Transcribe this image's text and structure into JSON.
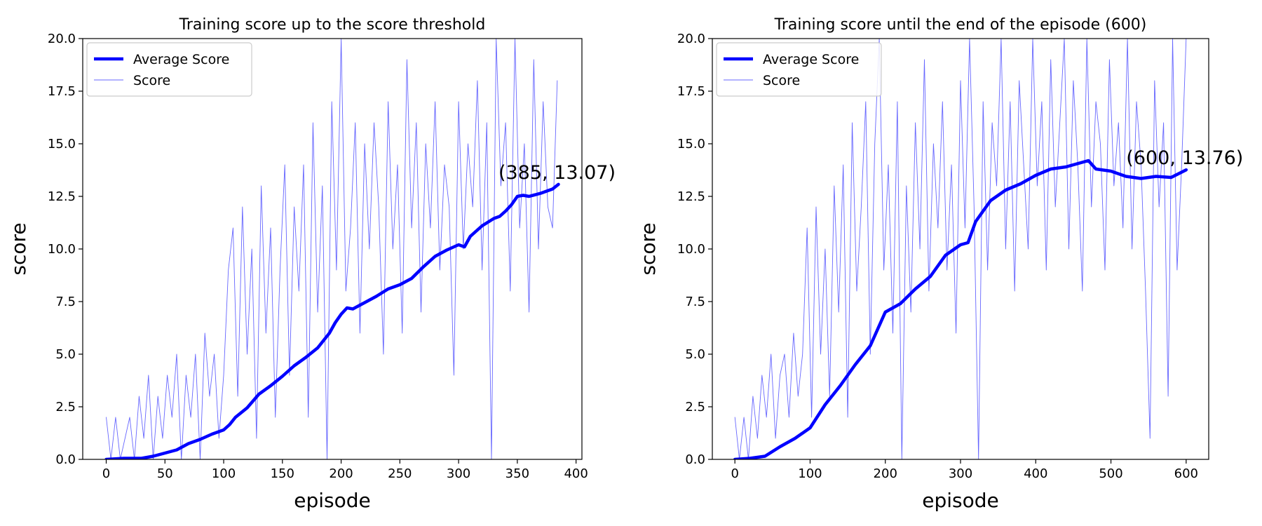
{
  "colors": {
    "line": "#0000ff",
    "axis": "#000000",
    "background": "#ffffff",
    "legend_border": "#cccccc"
  },
  "chart_data": [
    {
      "type": "line",
      "title": "Training score up to the score threshold",
      "xlabel": "episode",
      "ylabel": "score",
      "xlim": [
        -20,
        405
      ],
      "ylim": [
        0,
        20
      ],
      "xticks": [
        0,
        50,
        100,
        150,
        200,
        250,
        300,
        350,
        400
      ],
      "yticks": [
        0,
        2.5,
        5,
        7.5,
        10,
        12.5,
        15,
        17.5,
        20
      ],
      "xtick_labels": [
        "0",
        "50",
        "100",
        "150",
        "200",
        "250",
        "300",
        "350",
        "400"
      ],
      "ytick_labels": [
        "0.0",
        "2.5",
        "5.0",
        "7.5",
        "10.0",
        "12.5",
        "15.0",
        "17.5",
        "20.0"
      ],
      "legend": {
        "position": "top-left",
        "entries": [
          "Average Score",
          "Score"
        ]
      },
      "grid": false,
      "annotation": {
        "text": "(385, 13.07)",
        "x": 385,
        "y": 13.07
      },
      "series": [
        {
          "name": "Average Score",
          "style": "thick",
          "x": [
            0,
            15,
            30,
            40,
            50,
            60,
            70,
            80,
            90,
            100,
            105,
            110,
            120,
            130,
            140,
            150,
            160,
            170,
            180,
            190,
            195,
            200,
            205,
            210,
            220,
            230,
            240,
            250,
            260,
            270,
            280,
            290,
            300,
            305,
            310,
            320,
            330,
            335,
            340,
            345,
            350,
            355,
            360,
            370,
            380,
            385
          ],
          "y": [
            0,
            0.05,
            0.05,
            0.15,
            0.3,
            0.45,
            0.75,
            0.95,
            1.2,
            1.4,
            1.65,
            2.0,
            2.45,
            3.1,
            3.5,
            3.95,
            4.45,
            4.85,
            5.3,
            6.0,
            6.5,
            6.9,
            7.2,
            7.15,
            7.45,
            7.75,
            8.1,
            8.3,
            8.6,
            9.15,
            9.65,
            9.95,
            10.2,
            10.1,
            10.6,
            11.1,
            11.45,
            11.55,
            11.8,
            12.1,
            12.5,
            12.55,
            12.5,
            12.65,
            12.85,
            13.07
          ]
        },
        {
          "name": "Score",
          "style": "thin",
          "x": [
            0,
            4,
            8,
            12,
            16,
            20,
            24,
            28,
            32,
            36,
            40,
            44,
            48,
            52,
            56,
            60,
            64,
            68,
            72,
            76,
            80,
            84,
            88,
            92,
            96,
            100,
            104,
            108,
            112,
            116,
            120,
            124,
            128,
            132,
            136,
            140,
            144,
            148,
            152,
            156,
            160,
            164,
            168,
            172,
            176,
            180,
            184,
            188,
            192,
            196,
            200,
            204,
            208,
            212,
            216,
            220,
            224,
            228,
            232,
            236,
            240,
            244,
            248,
            252,
            256,
            260,
            264,
            268,
            272,
            276,
            280,
            284,
            288,
            292,
            296,
            300,
            304,
            308,
            312,
            316,
            320,
            324,
            328,
            332,
            336,
            340,
            344,
            348,
            352,
            356,
            360,
            364,
            368,
            372,
            376,
            380,
            384
          ],
          "y": [
            2,
            0,
            2,
            0,
            1,
            2,
            0,
            3,
            1,
            4,
            0,
            3,
            1,
            4,
            2,
            5,
            0,
            4,
            2,
            5,
            0,
            6,
            3,
            5,
            1,
            4,
            9,
            11,
            3,
            12,
            5,
            10,
            1,
            13,
            6,
            11,
            2,
            9,
            14,
            4,
            12,
            8,
            14,
            2,
            16,
            7,
            13,
            0,
            17,
            9,
            20,
            8,
            11,
            16,
            6,
            15,
            10,
            16,
            12,
            5,
            17,
            10,
            14,
            6,
            19,
            11,
            16,
            7,
            15,
            11,
            17,
            9,
            14,
            12,
            4,
            17,
            10,
            15,
            12,
            18,
            9,
            16,
            0,
            20,
            13,
            16,
            8,
            20,
            11,
            15,
            7,
            19,
            10,
            17,
            12,
            11,
            18
          ]
        }
      ]
    },
    {
      "type": "line",
      "title": "Training score until the end of the episode (600)",
      "xlabel": "episode",
      "ylabel": "score",
      "xlim": [
        -30,
        630
      ],
      "ylim": [
        0,
        20
      ],
      "xticks": [
        0,
        100,
        200,
        300,
        400,
        500,
        600
      ],
      "yticks": [
        0,
        2.5,
        5,
        7.5,
        10,
        12.5,
        15,
        17.5,
        20
      ],
      "xtick_labels": [
        "0",
        "100",
        "200",
        "300",
        "400",
        "500",
        "600"
      ],
      "ytick_labels": [
        "0.0",
        "2.5",
        "5.0",
        "7.5",
        "10.0",
        "12.5",
        "15.0",
        "17.5",
        "20.0"
      ],
      "legend": {
        "position": "top-left",
        "entries": [
          "Average Score",
          "Score"
        ]
      },
      "grid": false,
      "annotation": {
        "text": "(600, 13.76)",
        "x": 600,
        "y": 13.76
      },
      "series": [
        {
          "name": "Average Score",
          "style": "thick",
          "x": [
            0,
            20,
            40,
            60,
            80,
            100,
            120,
            140,
            160,
            180,
            200,
            220,
            240,
            260,
            280,
            300,
            310,
            320,
            340,
            360,
            380,
            400,
            420,
            440,
            460,
            470,
            480,
            500,
            520,
            540,
            560,
            580,
            600
          ],
          "y": [
            0,
            0.05,
            0.15,
            0.6,
            1.0,
            1.5,
            2.6,
            3.5,
            4.5,
            5.4,
            7.0,
            7.4,
            8.1,
            8.7,
            9.7,
            10.2,
            10.3,
            11.3,
            12.3,
            12.8,
            13.1,
            13.5,
            13.8,
            13.9,
            14.1,
            14.2,
            13.8,
            13.7,
            13.45,
            13.35,
            13.45,
            13.4,
            13.76
          ]
        },
        {
          "name": "Score",
          "style": "thin",
          "x": [
            0,
            6,
            12,
            18,
            24,
            30,
            36,
            42,
            48,
            54,
            60,
            66,
            72,
            78,
            84,
            90,
            96,
            102,
            108,
            114,
            120,
            126,
            132,
            138,
            144,
            150,
            156,
            162,
            168,
            174,
            180,
            186,
            192,
            198,
            204,
            210,
            216,
            222,
            228,
            234,
            240,
            246,
            252,
            258,
            264,
            270,
            276,
            282,
            288,
            294,
            300,
            306,
            312,
            318,
            324,
            330,
            336,
            342,
            348,
            354,
            360,
            366,
            372,
            378,
            384,
            390,
            396,
            402,
            408,
            414,
            420,
            426,
            432,
            438,
            444,
            450,
            456,
            462,
            468,
            474,
            480,
            486,
            492,
            498,
            504,
            510,
            516,
            522,
            528,
            534,
            540,
            546,
            552,
            558,
            564,
            570,
            576,
            582,
            588,
            594,
            600
          ],
          "y": [
            2,
            0,
            2,
            0,
            3,
            1,
            4,
            2,
            5,
            1,
            4,
            5,
            2,
            6,
            3,
            5,
            11,
            2,
            12,
            5,
            10,
            3,
            13,
            7,
            14,
            2,
            16,
            8,
            12,
            17,
            5,
            15,
            20,
            9,
            14,
            6,
            17,
            0,
            13,
            7,
            16,
            10,
            19,
            8,
            15,
            11,
            17,
            9,
            14,
            6,
            18,
            11,
            20,
            12,
            0,
            17,
            9,
            16,
            13,
            20,
            10,
            17,
            8,
            18,
            14,
            10,
            20,
            13,
            17,
            9,
            19,
            12,
            16,
            20,
            10,
            18,
            14,
            8,
            20,
            12,
            17,
            15,
            9,
            19,
            13,
            16,
            11,
            20,
            10,
            17,
            14,
            8,
            1,
            18,
            12,
            16,
            3,
            20,
            9,
            14,
            20
          ]
        }
      ]
    }
  ]
}
